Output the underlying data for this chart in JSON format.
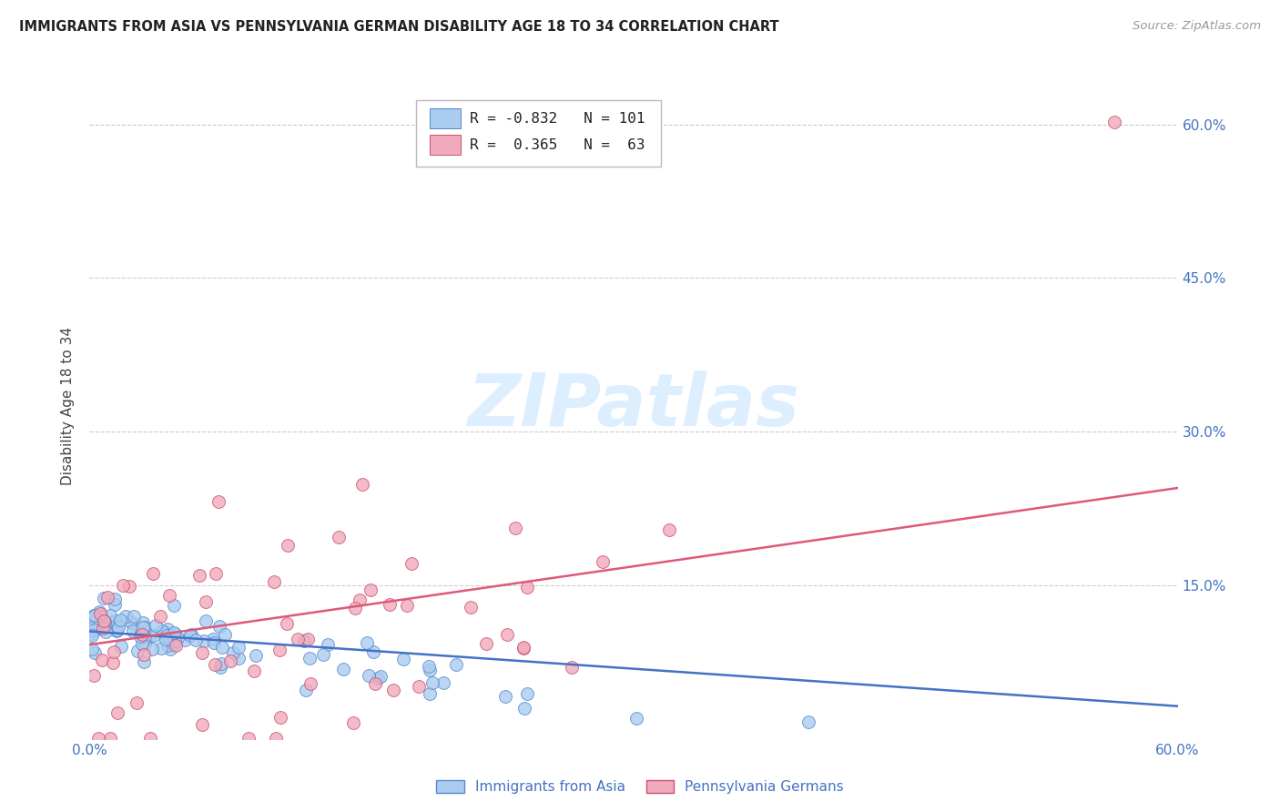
{
  "title": "IMMIGRANTS FROM ASIA VS PENNSYLVANIA GERMAN DISABILITY AGE 18 TO 34 CORRELATION CHART",
  "source": "Source: ZipAtlas.com",
  "ylabel": "Disability Age 18 to 34",
  "xlim": [
    0.0,
    0.6
  ],
  "ylim": [
    0.0,
    0.65
  ],
  "xtick_values": [
    0.0,
    0.2,
    0.4,
    0.6
  ],
  "xtick_labels": [
    "0.0%",
    "",
    "",
    "60.0%"
  ],
  "ytick_values": [
    0.15,
    0.3,
    0.45,
    0.6
  ],
  "ytick_labels": [
    "15.0%",
    "30.0%",
    "45.0%",
    "60.0%"
  ],
  "color_asia": "#aaccf0",
  "color_pa_german": "#f0aabb",
  "line_color_asia": "#4472c4",
  "line_color_pa_german": "#e05878",
  "scatter_edge_asia": "#5588cc",
  "scatter_edge_pa": "#cc5070",
  "background_color": "#ffffff",
  "watermark_text": "ZIPatlas",
  "watermark_color": "#ddeeff",
  "asia_N": 101,
  "pa_N": 63,
  "asia_R": -0.832,
  "pa_R": 0.365
}
